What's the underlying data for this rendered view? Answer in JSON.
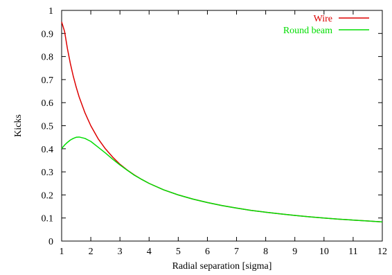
{
  "chart_data": {
    "type": "line",
    "title": "",
    "xlabel": "Radial separation [sigma]",
    "ylabel": "Kicks",
    "xlim": [
      1,
      12
    ],
    "ylim": [
      0,
      1
    ],
    "xticks": [
      "1",
      "2",
      "3",
      "4",
      "5",
      "6",
      "7",
      "8",
      "9",
      "10",
      "11",
      "12"
    ],
    "yticks": [
      "0",
      "0.1",
      "0.2",
      "0.3",
      "0.4",
      "0.5",
      "0.6",
      "0.7",
      "0.8",
      "0.9",
      "1"
    ],
    "grid": false,
    "legend_position": "top-right",
    "series": [
      {
        "name": "Wire",
        "color": "#dd0000",
        "x": [
          1.0,
          1.1,
          1.2,
          1.3,
          1.4,
          1.5,
          1.6,
          1.8,
          2.0,
          2.25,
          2.5,
          2.75,
          3.0,
          3.25,
          3.5,
          3.75,
          4.0,
          4.5,
          5.0,
          5.5,
          6.0,
          6.5,
          7.0,
          7.5,
          8.0,
          8.5,
          9.0,
          9.5,
          10.0,
          10.5,
          11.0,
          11.5,
          12.0
        ],
        "y": [
          0.95,
          0.909,
          0.833,
          0.769,
          0.714,
          0.667,
          0.625,
          0.556,
          0.5,
          0.444,
          0.4,
          0.364,
          0.333,
          0.308,
          0.286,
          0.267,
          0.25,
          0.222,
          0.2,
          0.182,
          0.167,
          0.154,
          0.143,
          0.133,
          0.125,
          0.118,
          0.111,
          0.105,
          0.1,
          0.095,
          0.091,
          0.087,
          0.083
        ]
      },
      {
        "name": "Round beam",
        "color": "#00dd00",
        "x": [
          1.0,
          1.1,
          1.2,
          1.3,
          1.4,
          1.5,
          1.6,
          1.8,
          2.0,
          2.25,
          2.5,
          2.75,
          3.0,
          3.25,
          3.5,
          3.75,
          4.0,
          4.5,
          5.0,
          5.5,
          6.0,
          6.5,
          7.0,
          7.5,
          8.0,
          8.5,
          9.0,
          9.5,
          10.0,
          10.5,
          11.0,
          11.5,
          12.0
        ],
        "y": [
          0.401,
          0.416,
          0.428,
          0.438,
          0.445,
          0.45,
          0.451,
          0.445,
          0.432,
          0.407,
          0.382,
          0.355,
          0.33,
          0.307,
          0.285,
          0.267,
          0.25,
          0.222,
          0.2,
          0.182,
          0.167,
          0.154,
          0.143,
          0.133,
          0.125,
          0.118,
          0.111,
          0.105,
          0.1,
          0.095,
          0.091,
          0.087,
          0.083
        ]
      }
    ]
  }
}
